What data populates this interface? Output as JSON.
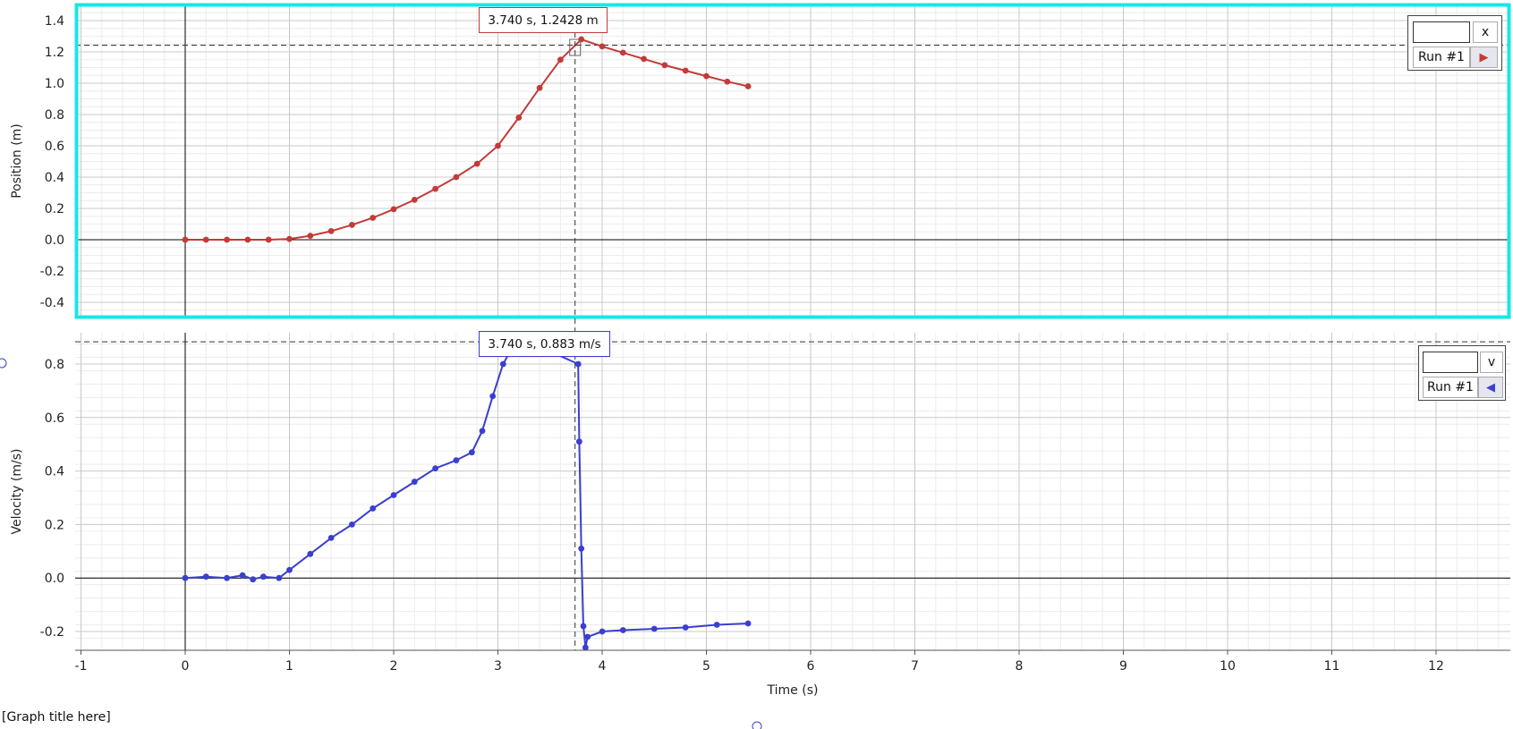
{
  "graph_title": "[Graph title here]",
  "colors": {
    "position_series": "#c43a38",
    "velocity_series": "#3a3fcf",
    "selection_border": "#19e6e6",
    "grid_major": "#c8c8c8",
    "grid_minor": "#ececec"
  },
  "legends": {
    "position": {
      "symbol": "x",
      "run_label": "Run #1",
      "arrow_icon": "play-right-icon"
    },
    "velocity": {
      "symbol": "v",
      "run_label": "Run #1",
      "arrow_icon": "play-left-icon"
    }
  },
  "readouts": {
    "position": "3.740 s, 1.2428 m",
    "velocity": "3.740 s, 0.883 m/s"
  },
  "chart_data": [
    {
      "type": "scatter",
      "title": "",
      "xlabel": "Time (s)",
      "ylabel": "Position (m)",
      "xlim": [
        -1.1,
        12.7
      ],
      "ylim": [
        -0.5,
        1.5
      ],
      "grid": true,
      "cursor": {
        "x": 3.74,
        "y": 1.2428
      },
      "xticks": [
        -1,
        0,
        1,
        2,
        3,
        4,
        5,
        6,
        7,
        8,
        9,
        10,
        11,
        12
      ],
      "yticks": [
        -0.4,
        -0.2,
        0.0,
        0.2,
        0.4,
        0.6,
        0.8,
        1.0,
        1.2,
        1.4
      ],
      "series": [
        {
          "name": "Run #1",
          "x": [
            0.0,
            0.2,
            0.4,
            0.6,
            0.8,
            1.0,
            1.2,
            1.4,
            1.6,
            1.8,
            2.0,
            2.2,
            2.4,
            2.6,
            2.8,
            3.0,
            3.2,
            3.4,
            3.6,
            3.8,
            4.0,
            4.2,
            4.4,
            4.6,
            4.8,
            5.0,
            5.2,
            5.4
          ],
          "y": [
            0.0,
            0.0,
            0.0,
            0.0,
            0.0,
            0.005,
            0.025,
            0.055,
            0.095,
            0.14,
            0.195,
            0.255,
            0.325,
            0.4,
            0.485,
            0.6,
            0.78,
            0.97,
            1.15,
            1.28,
            1.235,
            1.195,
            1.155,
            1.115,
            1.08,
            1.045,
            1.01,
            0.98
          ]
        }
      ]
    },
    {
      "type": "scatter",
      "title": "",
      "xlabel": "Time (s)",
      "ylabel": "Velocity (m/s)",
      "xlim": [
        -1.1,
        12.7
      ],
      "ylim": [
        -0.275,
        0.925
      ],
      "grid": true,
      "cursor": {
        "x": 3.74,
        "y": 0.883
      },
      "xticks": [
        -1,
        0,
        1,
        2,
        3,
        4,
        5,
        6,
        7,
        8,
        9,
        10,
        11,
        12
      ],
      "yticks": [
        -0.2,
        0.0,
        0.2,
        0.4,
        0.6,
        0.8
      ],
      "series": [
        {
          "name": "Run #1",
          "x": [
            0.0,
            0.2,
            0.4,
            0.55,
            0.65,
            0.75,
            0.9,
            1.0,
            1.2,
            1.4,
            1.6,
            1.8,
            2.0,
            2.2,
            2.4,
            2.6,
            2.75,
            2.85,
            2.95,
            3.05,
            3.15,
            3.2,
            3.77,
            3.78,
            3.8,
            3.82,
            3.84,
            3.86,
            4.0,
            4.2,
            4.5,
            4.8,
            5.1,
            5.4
          ],
          "y": [
            0.0,
            0.005,
            0.0,
            0.01,
            -0.005,
            0.005,
            0.0,
            0.03,
            0.09,
            0.15,
            0.2,
            0.26,
            0.31,
            0.36,
            0.41,
            0.44,
            0.47,
            0.55,
            0.68,
            0.8,
            0.87,
            0.9,
            0.8,
            0.51,
            0.11,
            -0.18,
            -0.26,
            -0.22,
            -0.2,
            -0.195,
            -0.19,
            -0.185,
            -0.175,
            -0.17
          ]
        }
      ]
    }
  ]
}
